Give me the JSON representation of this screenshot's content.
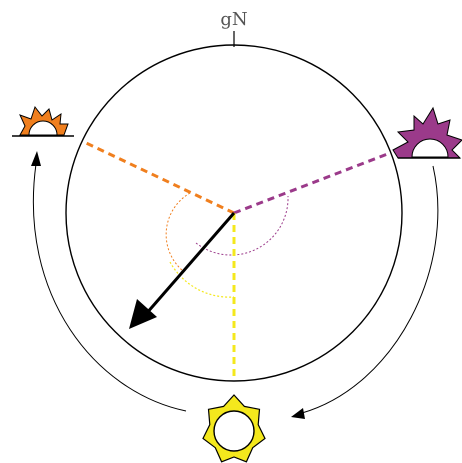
{
  "diagram": {
    "north_label": "gN",
    "colors": {
      "outline": "#000000",
      "sunrise": "#f07f1e",
      "sunset": "#9b3a8a",
      "noon": "#f4e81d",
      "pointer": "#000000"
    },
    "icons": {
      "sunrise": "rising-sun-icon",
      "sunset": "setting-sun-icon",
      "noon": "sun-icon"
    }
  }
}
